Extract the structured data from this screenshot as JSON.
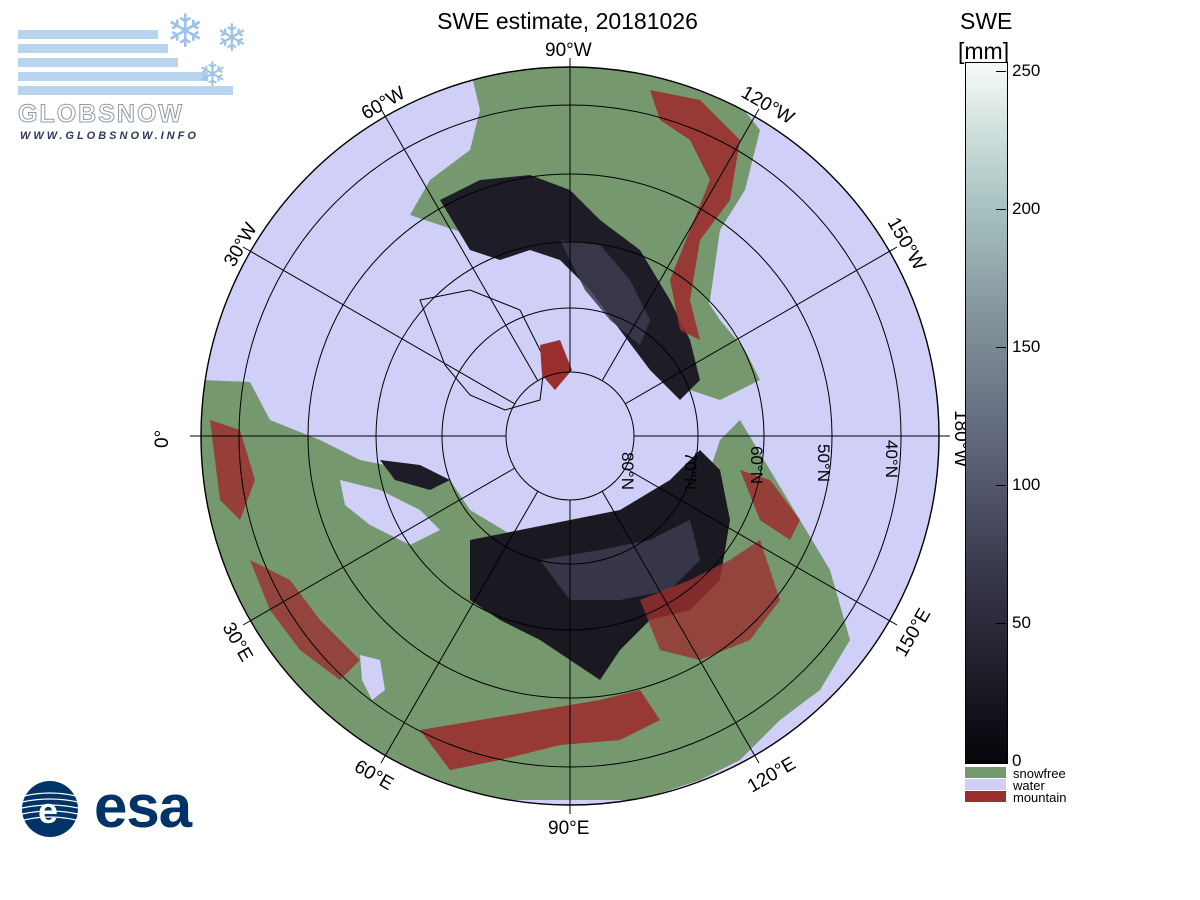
{
  "title": "SWE estimate, 20181026",
  "colorbar": {
    "title_line1": "SWE",
    "title_line2": "[mm]",
    "ticks": [
      "250",
      "200",
      "150",
      "100",
      "50",
      "0"
    ],
    "legend": [
      {
        "label": "snowfree",
        "color": "#76986f"
      },
      {
        "label": "water",
        "color": "#cfcff8"
      },
      {
        "label": "mountain",
        "color": "#9b2f2f"
      }
    ]
  },
  "map": {
    "projection": "north polar stereographic",
    "colors": {
      "land_snowfree": "#76986f",
      "water": "#cfcff8",
      "mountain": "#9b2f2f",
      "snow_low": "#15141c",
      "snow_mid": "#3d3c50",
      "grid": "#000000"
    },
    "longitude_labels": {
      "lon_90w": "90°W",
      "lon_120w": "120°W",
      "lon_150w": "150°W",
      "lon_180w": "180°W",
      "lon_150e": "150°E",
      "lon_120e": "120°E",
      "lon_90e": "90°E",
      "lon_60e": "60°E",
      "lon_30e": "30°E",
      "lon_0": "0°",
      "lon_30w": "30°W",
      "lon_60w": "60°W"
    },
    "latitude_labels": {
      "lat_80n": "80°N",
      "lat_70n": "70°N",
      "lat_60n": "60°N",
      "lat_50n": "50°N",
      "lat_40n": "40°N"
    }
  },
  "logos": {
    "globsnow_word": "GLOBSNOW",
    "globsnow_url": "WWW.GLOBSNOW.INFO",
    "esa_word": "esa"
  }
}
